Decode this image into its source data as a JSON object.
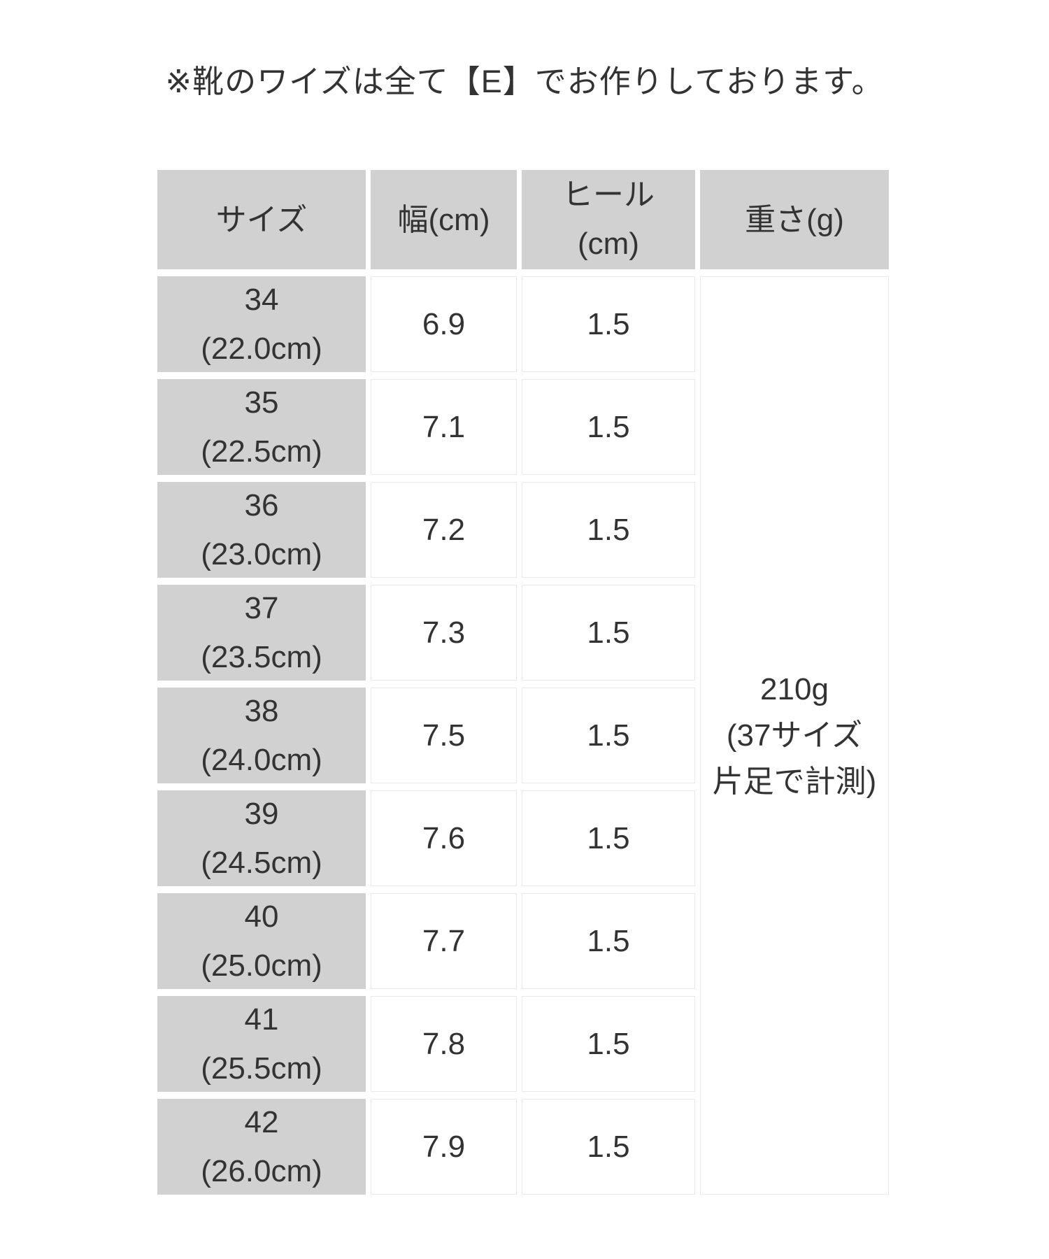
{
  "note": "※靴のワイズは全て【E】でお作りしております。",
  "table": {
    "headers": [
      "サイズ",
      "幅(cm)",
      "ヒール\n(cm)",
      "重さ(g)"
    ],
    "rows": [
      {
        "size": "34\n(22.0cm)",
        "width": "6.9",
        "heel": "1.5"
      },
      {
        "size": "35\n(22.5cm)",
        "width": "7.1",
        "heel": "1.5"
      },
      {
        "size": "36\n(23.0cm)",
        "width": "7.2",
        "heel": "1.5"
      },
      {
        "size": "37\n(23.5cm)",
        "width": "7.3",
        "heel": "1.5"
      },
      {
        "size": "38\n(24.0cm)",
        "width": "7.5",
        "heel": "1.5"
      },
      {
        "size": "39\n(24.5cm)",
        "width": "7.6",
        "heel": "1.5"
      },
      {
        "size": "40\n(25.0cm)",
        "width": "7.7",
        "heel": "1.5"
      },
      {
        "size": "41\n(25.5cm)",
        "width": "7.8",
        "heel": "1.5"
      },
      {
        "size": "42\n(26.0cm)",
        "width": "7.9",
        "heel": "1.5"
      }
    ],
    "weight_merged": "210g\n(37サイズ\n片足で計測)"
  },
  "chart_data": {
    "type": "table",
    "title": "※靴のワイズは全て【E】でお作りしております。",
    "columns": [
      "サイズ",
      "幅(cm)",
      "ヒール(cm)",
      "重さ(g)"
    ],
    "rows": [
      [
        "34 (22.0cm)",
        6.9,
        1.5,
        "210g (37サイズ片足で計測)"
      ],
      [
        "35 (22.5cm)",
        7.1,
        1.5,
        "210g (37サイズ片足で計測)"
      ],
      [
        "36 (23.0cm)",
        7.2,
        1.5,
        "210g (37サイズ片足で計測)"
      ],
      [
        "37 (23.5cm)",
        7.3,
        1.5,
        "210g (37サイズ片足で計測)"
      ],
      [
        "38 (24.0cm)",
        7.5,
        1.5,
        "210g (37サイズ片足で計測)"
      ],
      [
        "39 (24.5cm)",
        7.6,
        1.5,
        "210g (37サイズ片足で計測)"
      ],
      [
        "40 (25.0cm)",
        7.7,
        1.5,
        "210g (37サイズ片足で計測)"
      ],
      [
        "41 (25.5cm)",
        7.8,
        1.5,
        "210g (37サイズ片足で計測)"
      ],
      [
        "42 (26.0cm)",
        7.9,
        1.5,
        "210g (37サイズ片足で計測)"
      ]
    ],
    "notes": "重さ(g) column is a single merged cell spanning all size rows"
  },
  "colors": {
    "header_bg": "#d1d1d1",
    "cell_border": "#e9e9e9",
    "text": "#333333",
    "page_bg": "#ffffff"
  }
}
